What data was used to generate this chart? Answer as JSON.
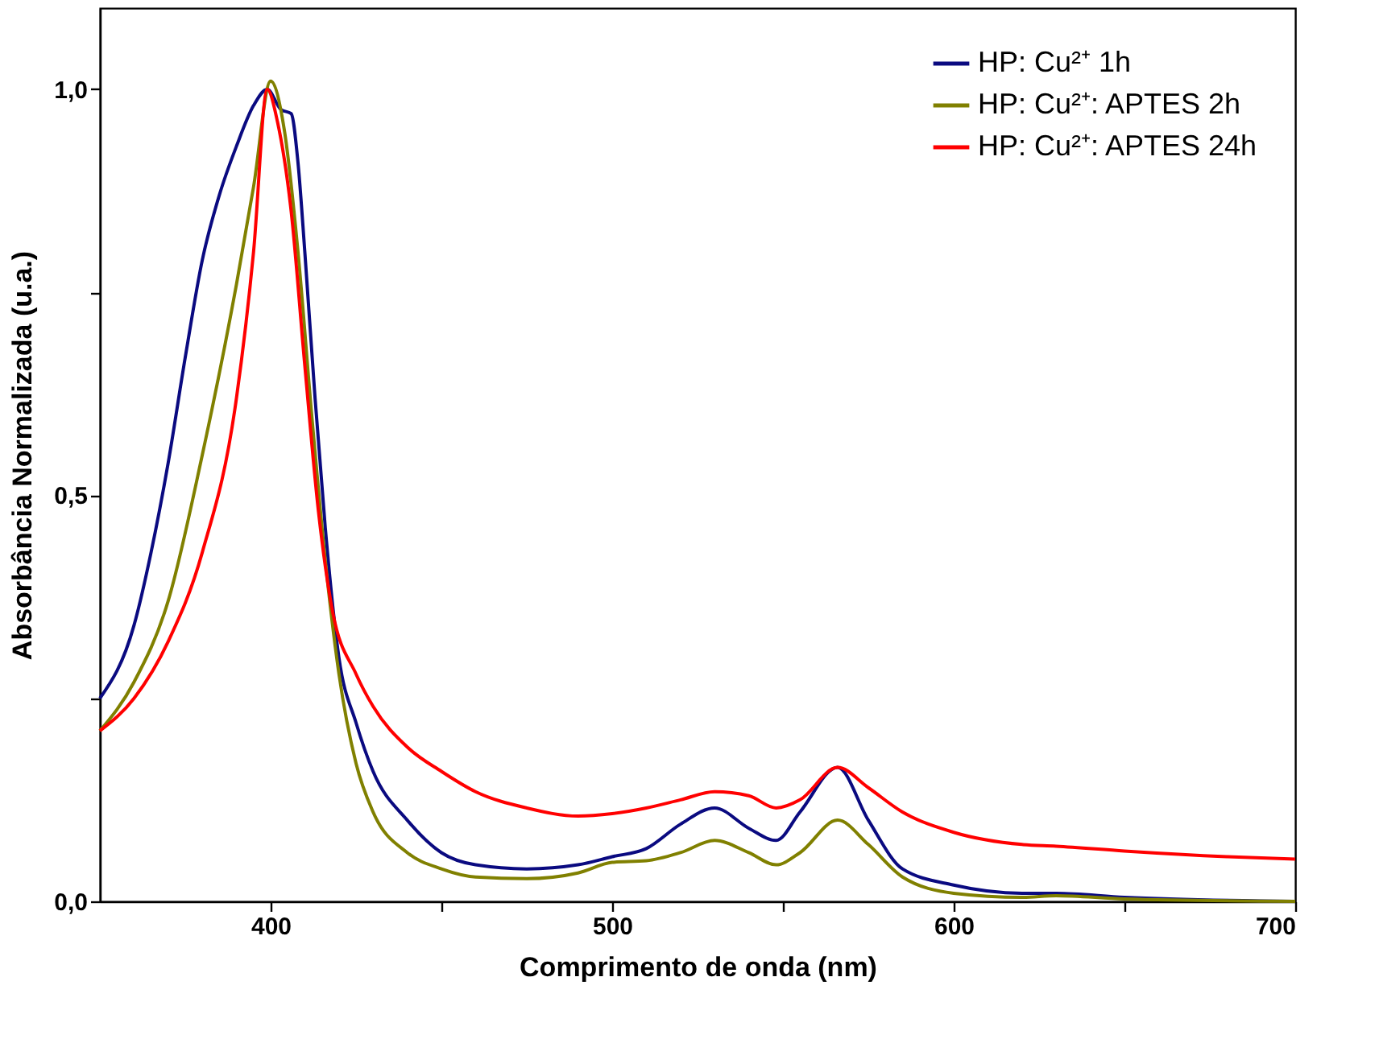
{
  "chart_data": {
    "type": "line",
    "xlabel": "Comprimento de onda (nm)",
    "ylabel": "Absorbância Normalizada (u.a.)",
    "xlim": [
      350,
      700
    ],
    "ylim": [
      0,
      1.1
    ],
    "xticks": [
      400,
      {
        "value": 450,
        "label": null
      },
      500,
      {
        "value": 550,
        "label": null
      },
      600,
      {
        "value": 650,
        "label": null
      },
      700
    ],
    "yticks": [
      {
        "value": 0,
        "label": "0,0"
      },
      {
        "value": 0.25,
        "label": null
      },
      {
        "value": 0.5,
        "label": "0,5"
      },
      {
        "value": 0.75,
        "label": null
      },
      {
        "value": 1,
        "label": "1,0"
      }
    ],
    "legend": "top right",
    "grid": false,
    "marker": "none",
    "line_style": "solid",
    "series": [
      {
        "name": "HP: Cu²⁺ 1h",
        "color": "#0a0a80",
        "x": [
          350,
          360,
          365,
          370,
          375,
          380,
          385,
          390,
          395,
          399,
          403,
          406,
          408,
          410,
          413,
          416,
          420,
          425,
          430,
          440,
          450,
          460,
          475,
          490,
          500,
          510,
          520,
          530,
          540,
          548,
          555,
          566,
          575,
          585,
          600,
          620,
          630,
          650,
          700
        ],
        "values": [
          0.25,
          0.34,
          0.43,
          0.54,
          0.67,
          0.79,
          0.87,
          0.93,
          0.98,
          1.0,
          0.975,
          0.97,
          0.91,
          0.8,
          0.62,
          0.46,
          0.3,
          0.22,
          0.16,
          0.1,
          0.06,
          0.045,
          0.04,
          0.045,
          0.055,
          0.065,
          0.095,
          0.115,
          0.09,
          0.075,
          0.11,
          0.165,
          0.1,
          0.04,
          0.02,
          0.01,
          0.01,
          0.005,
          0.0
        ]
      },
      {
        "name": "HP: Cu²⁺: APTES 2h",
        "color": "#808000",
        "x": [
          350,
          360,
          370,
          380,
          390,
          395,
          400,
          404,
          408,
          412,
          416,
          420,
          425,
          430,
          440,
          450,
          460,
          475,
          490,
          500,
          510,
          520,
          530,
          540,
          548,
          555,
          566,
          575,
          585,
          600,
          620,
          630,
          650,
          700
        ],
        "values": [
          0.21,
          0.27,
          0.37,
          0.55,
          0.76,
          0.88,
          1.01,
          0.95,
          0.8,
          0.6,
          0.42,
          0.28,
          0.17,
          0.11,
          0.06,
          0.04,
          0.03,
          0.028,
          0.035,
          0.048,
          0.05,
          0.06,
          0.075,
          0.06,
          0.045,
          0.06,
          0.1,
          0.07,
          0.03,
          0.01,
          0.005,
          0.007,
          0.003,
          0.0
        ]
      },
      {
        "name": "HP: Cu²⁺: APTES 24h",
        "color": "#ff0000",
        "x": [
          350,
          360,
          370,
          380,
          390,
          395,
          399,
          402,
          406,
          410,
          414,
          418,
          425,
          430,
          440,
          450,
          460,
          475,
          490,
          500,
          510,
          520,
          530,
          540,
          548,
          555,
          566,
          575,
          585,
          600,
          620,
          630,
          650,
          680,
          700
        ],
        "values": [
          0.21,
          0.25,
          0.32,
          0.43,
          0.62,
          0.8,
          1.0,
          0.96,
          0.85,
          0.66,
          0.48,
          0.36,
          0.28,
          0.24,
          0.19,
          0.16,
          0.135,
          0.115,
          0.105,
          0.108,
          0.115,
          0.125,
          0.135,
          0.13,
          0.115,
          0.125,
          0.165,
          0.14,
          0.11,
          0.085,
          0.07,
          0.068,
          0.062,
          0.055,
          0.052
        ]
      }
    ]
  }
}
